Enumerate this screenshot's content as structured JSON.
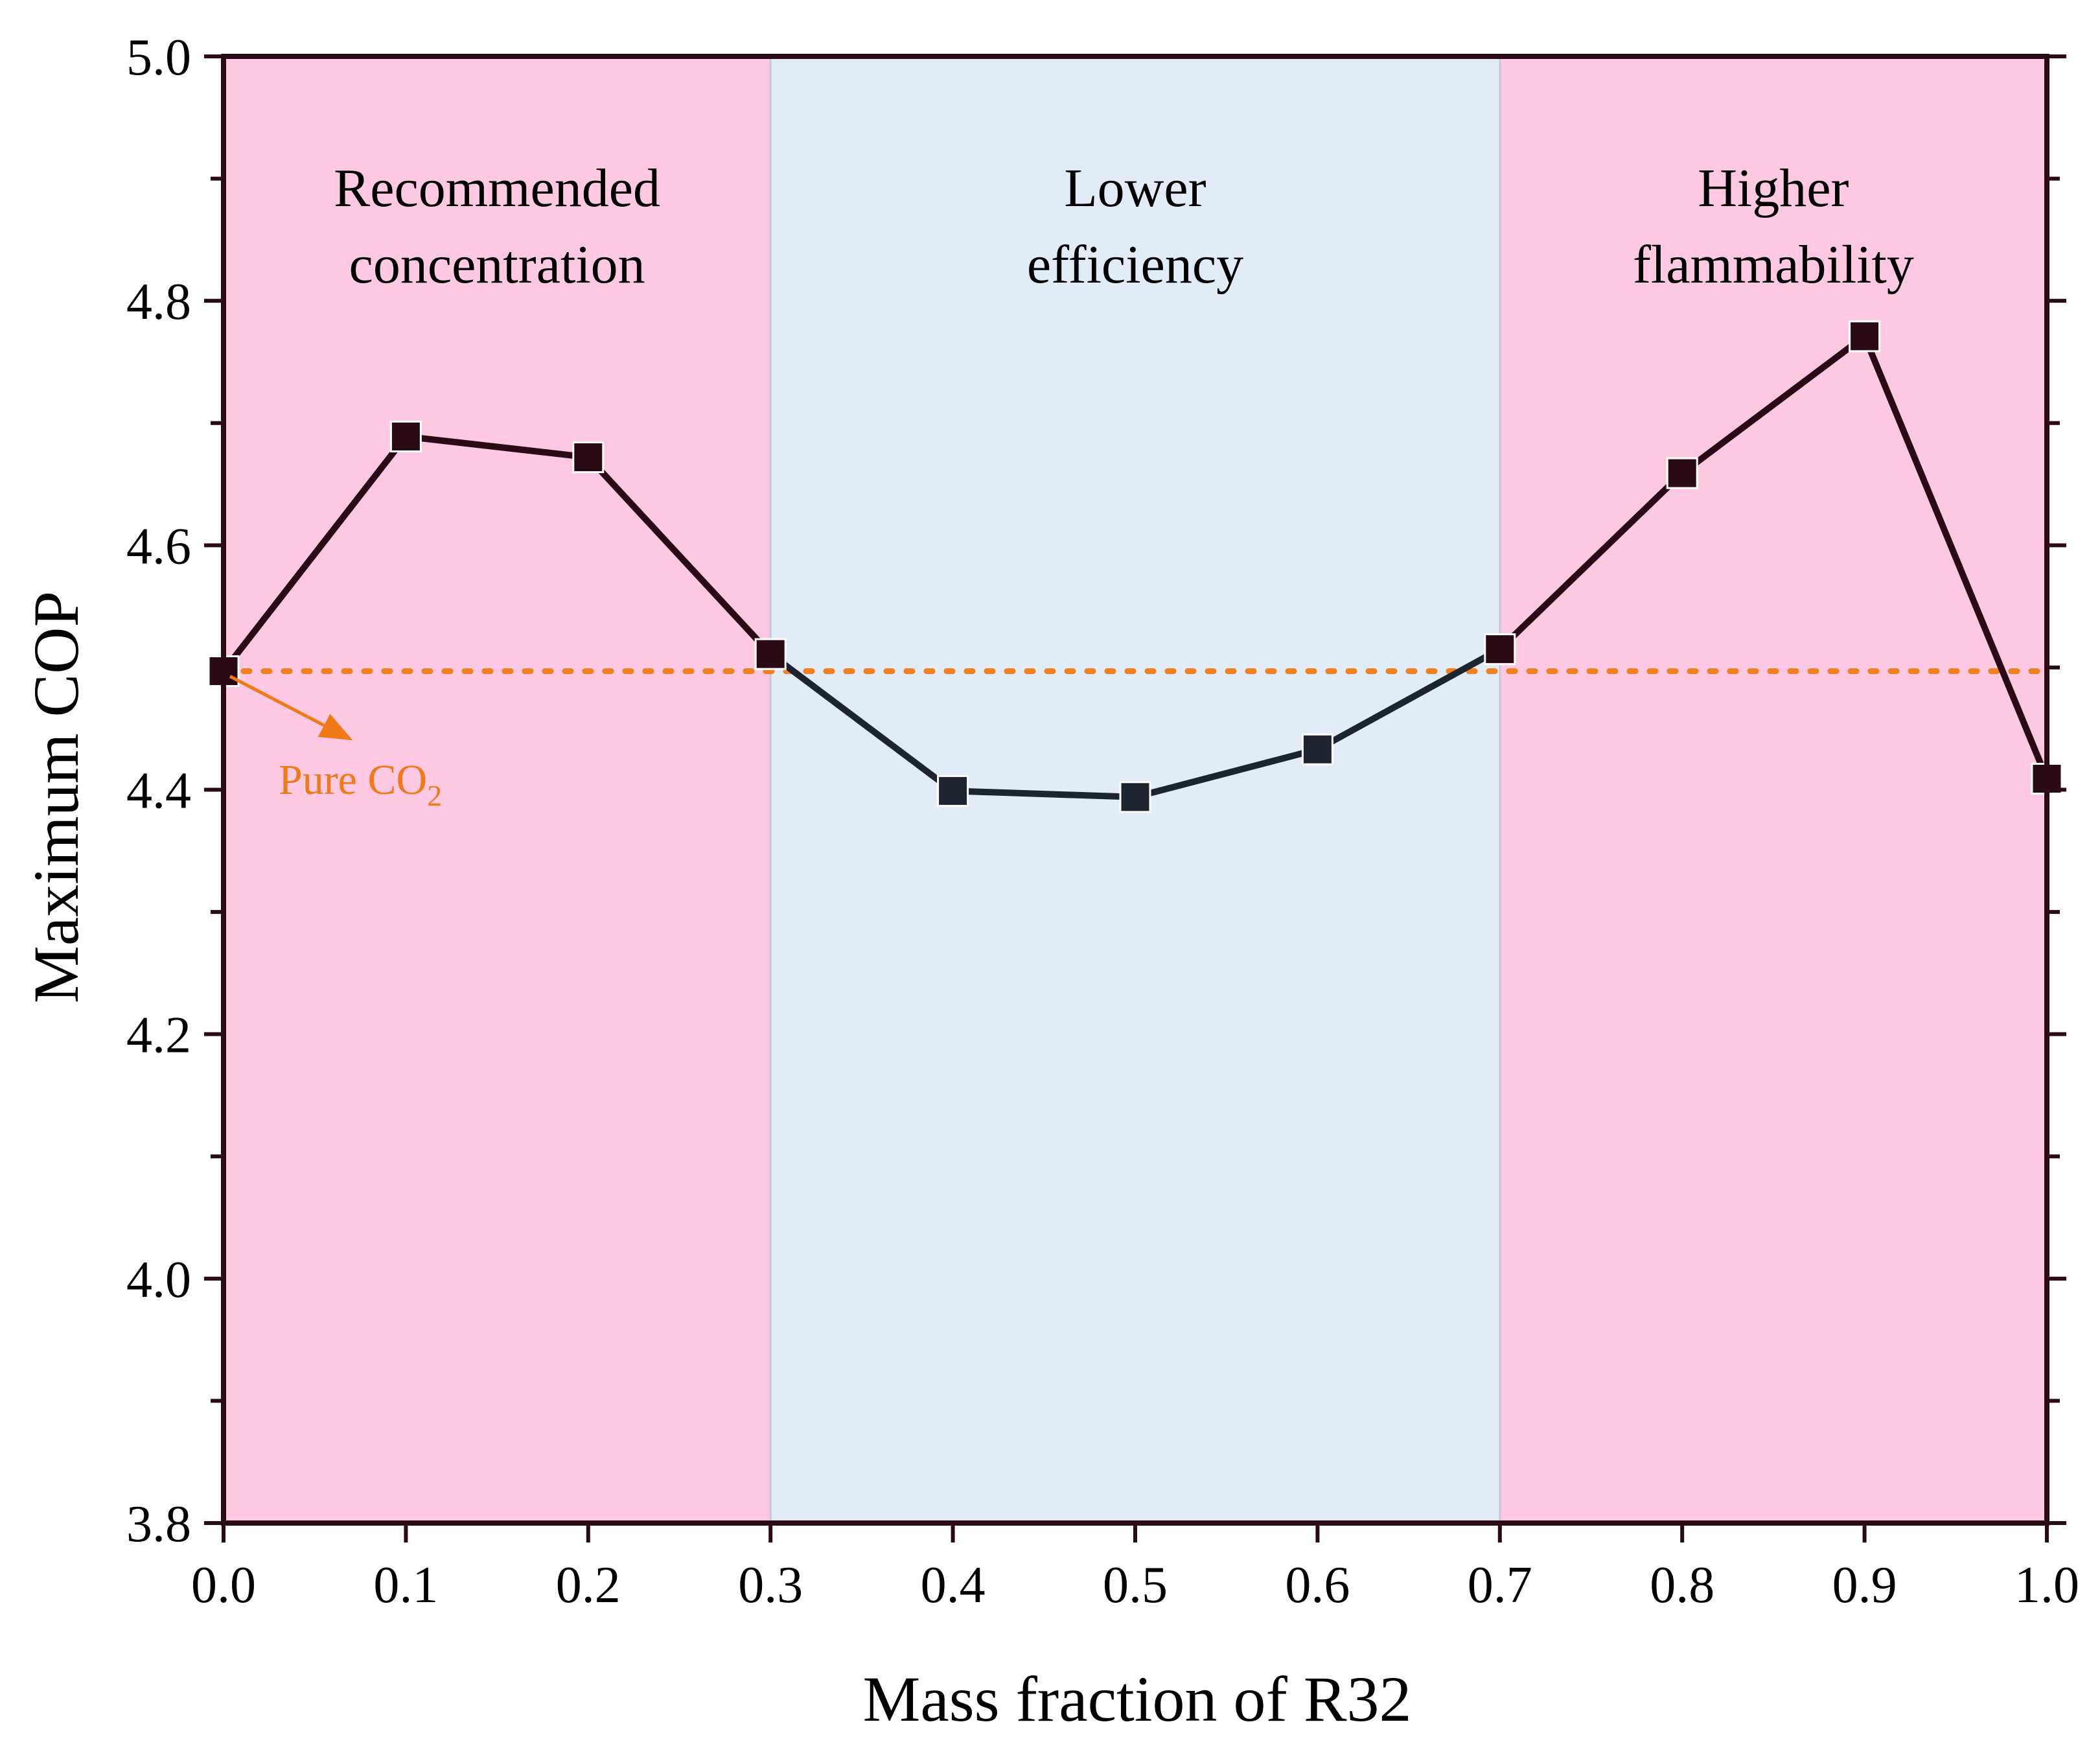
{
  "colors": {
    "region_pink": "#fcc8e2",
    "region_blue": "#e2ecf6",
    "axis": "#2a0a14",
    "line_left": "#2a0a14",
    "line_mid": "#1c2430",
    "marker_left": "#2a0a14",
    "marker_mid": "#1c2430",
    "reference": "#f08020",
    "annotation": "#f07a18"
  },
  "chart_data": {
    "type": "line",
    "title": "",
    "xlabel": "Mass fraction of R32",
    "ylabel": "Maximum COP",
    "xlim": [
      0.0,
      1.0
    ],
    "ylim": [
      3.8,
      5.0
    ],
    "x_ticks": [
      0.0,
      0.1,
      0.2,
      0.3,
      0.4,
      0.5,
      0.6,
      0.7,
      0.8,
      0.9,
      1.0
    ],
    "x_tick_labels": [
      "0.0",
      "0.1",
      "0.2",
      "0.3",
      "0.4",
      "0.5",
      "0.6",
      "0.7",
      "0.8",
      "0.9",
      "1.0"
    ],
    "y_ticks": [
      3.8,
      4.0,
      4.2,
      4.4,
      4.6,
      4.8,
      5.0
    ],
    "y_tick_labels": [
      "3.8",
      "4.0",
      "4.2",
      "4.4",
      "4.6",
      "4.8",
      "5.0"
    ],
    "y_minor_ticks": [
      3.9,
      4.1,
      4.3,
      4.5,
      4.7,
      4.9
    ],
    "grid": false,
    "series": [
      {
        "name": "Maximum COP",
        "marker": "square",
        "x": [
          0.0,
          0.1,
          0.2,
          0.3,
          0.4,
          0.5,
          0.6,
          0.7,
          0.8,
          0.9,
          1.0
        ],
        "y": [
          4.497,
          4.689,
          4.672,
          4.511,
          4.399,
          4.394,
          4.433,
          4.515,
          4.659,
          4.771,
          4.409
        ]
      }
    ],
    "reference_line": {
      "y": 4.497,
      "style": "dotted",
      "label": "Pure CO",
      "label_subscript": "2"
    },
    "regions": [
      {
        "x0": 0.0,
        "x1": 0.3,
        "color": "pink",
        "label_lines": [
          "Recommended",
          "concentration"
        ]
      },
      {
        "x0": 0.3,
        "x1": 0.7,
        "color": "blue",
        "label_lines": [
          "Lower",
          "efficiency"
        ]
      },
      {
        "x0": 0.7,
        "x1": 1.0,
        "color": "pink",
        "label_lines": [
          "Higher",
          "flammability"
        ]
      }
    ]
  }
}
